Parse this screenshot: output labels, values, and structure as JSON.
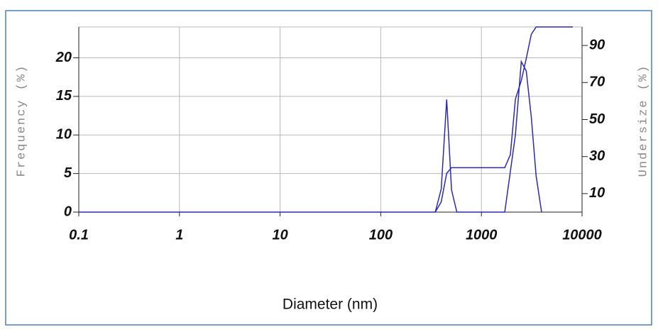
{
  "chart_data": {
    "type": "line",
    "xlabel": "Diameter (nm)",
    "ylabel": "Frequency (%)",
    "y2label": "Undersize (%)",
    "xscale": "log",
    "xlim": [
      0.1,
      10000
    ],
    "xticks": [
      0.1,
      1,
      10,
      100,
      1000,
      10000
    ],
    "ylim": [
      0,
      24
    ],
    "yticks": [
      0,
      5,
      10,
      15,
      20
    ],
    "y2lim": [
      0,
      100
    ],
    "y2ticks": [
      10,
      30,
      50,
      70,
      90
    ],
    "grid": true,
    "series": [
      {
        "color": "#2a2ab4",
        "x": [
          0.1,
          0.3,
          348,
          399,
          452,
          505,
          570,
          1707,
          2178,
          2490,
          2790,
          3130,
          3500,
          3960
        ],
        "values": [
          0,
          0,
          0,
          3,
          14.6,
          2.9,
          0,
          0,
          10,
          19.5,
          18.3,
          12.3,
          4.7,
          0
        ]
      },
      {
        "color": "#2a2ab4",
        "axis": "y2",
        "x": [
          348,
          399,
          452,
          505,
          1707,
          1940,
          2178,
          2490,
          2790,
          3130,
          3500,
          8100
        ],
        "values": [
          0,
          5.5,
          21,
          24,
          24,
          31,
          61,
          71,
          83,
          96,
          100,
          100
        ]
      }
    ]
  }
}
